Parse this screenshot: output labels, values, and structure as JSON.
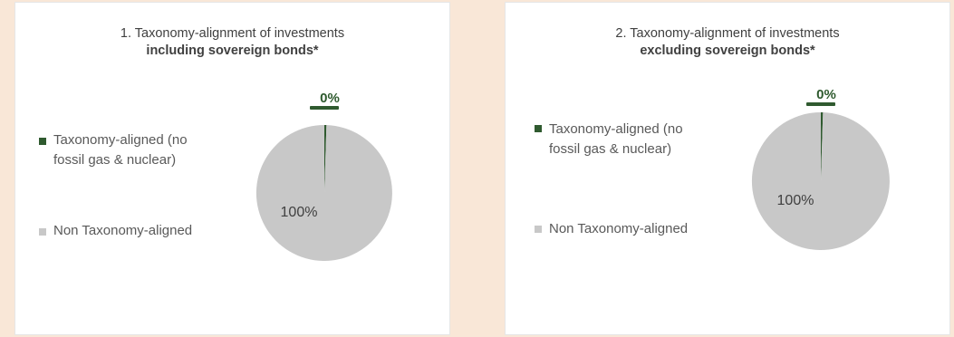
{
  "chart_data": [
    {
      "type": "pie",
      "title_line1": "1. Taxonomy-alignment of investments",
      "title_line2": "including sovereign bonds*",
      "legend": [
        {
          "label_line1": "Taxonomy-aligned (no",
          "label_line2": "fossil gas & nuclear)",
          "color": "#2f5a2f"
        },
        {
          "label_line1": "Non Taxonomy-aligned",
          "label_line2": "",
          "color": "#c8c8c8"
        }
      ],
      "slices": [
        {
          "name": "Taxonomy-aligned (no fossil gas & nuclear)",
          "value": 0.5,
          "label": "0%",
          "color": "#2f5a2f"
        },
        {
          "name": "Non Taxonomy-aligned",
          "value": 99.5,
          "label": "100%",
          "color": "#c8c8c8"
        }
      ]
    },
    {
      "type": "pie",
      "title_line1": "2. Taxonomy-alignment of investments",
      "title_line2": "excluding sovereign bonds*",
      "legend": [
        {
          "label_line1": "Taxonomy-aligned (no",
          "label_line2": "fossil gas & nuclear)",
          "color": "#2f5a2f"
        },
        {
          "label_line1": "Non Taxonomy-aligned",
          "label_line2": "",
          "color": "#c8c8c8"
        }
      ],
      "slices": [
        {
          "name": "Taxonomy-aligned (no fossil gas & nuclear)",
          "value": 0.5,
          "label": "0%",
          "color": "#2f5a2f"
        },
        {
          "name": "Non Taxonomy-aligned",
          "value": 99.5,
          "label": "100%",
          "color": "#c8c8c8"
        }
      ]
    }
  ]
}
